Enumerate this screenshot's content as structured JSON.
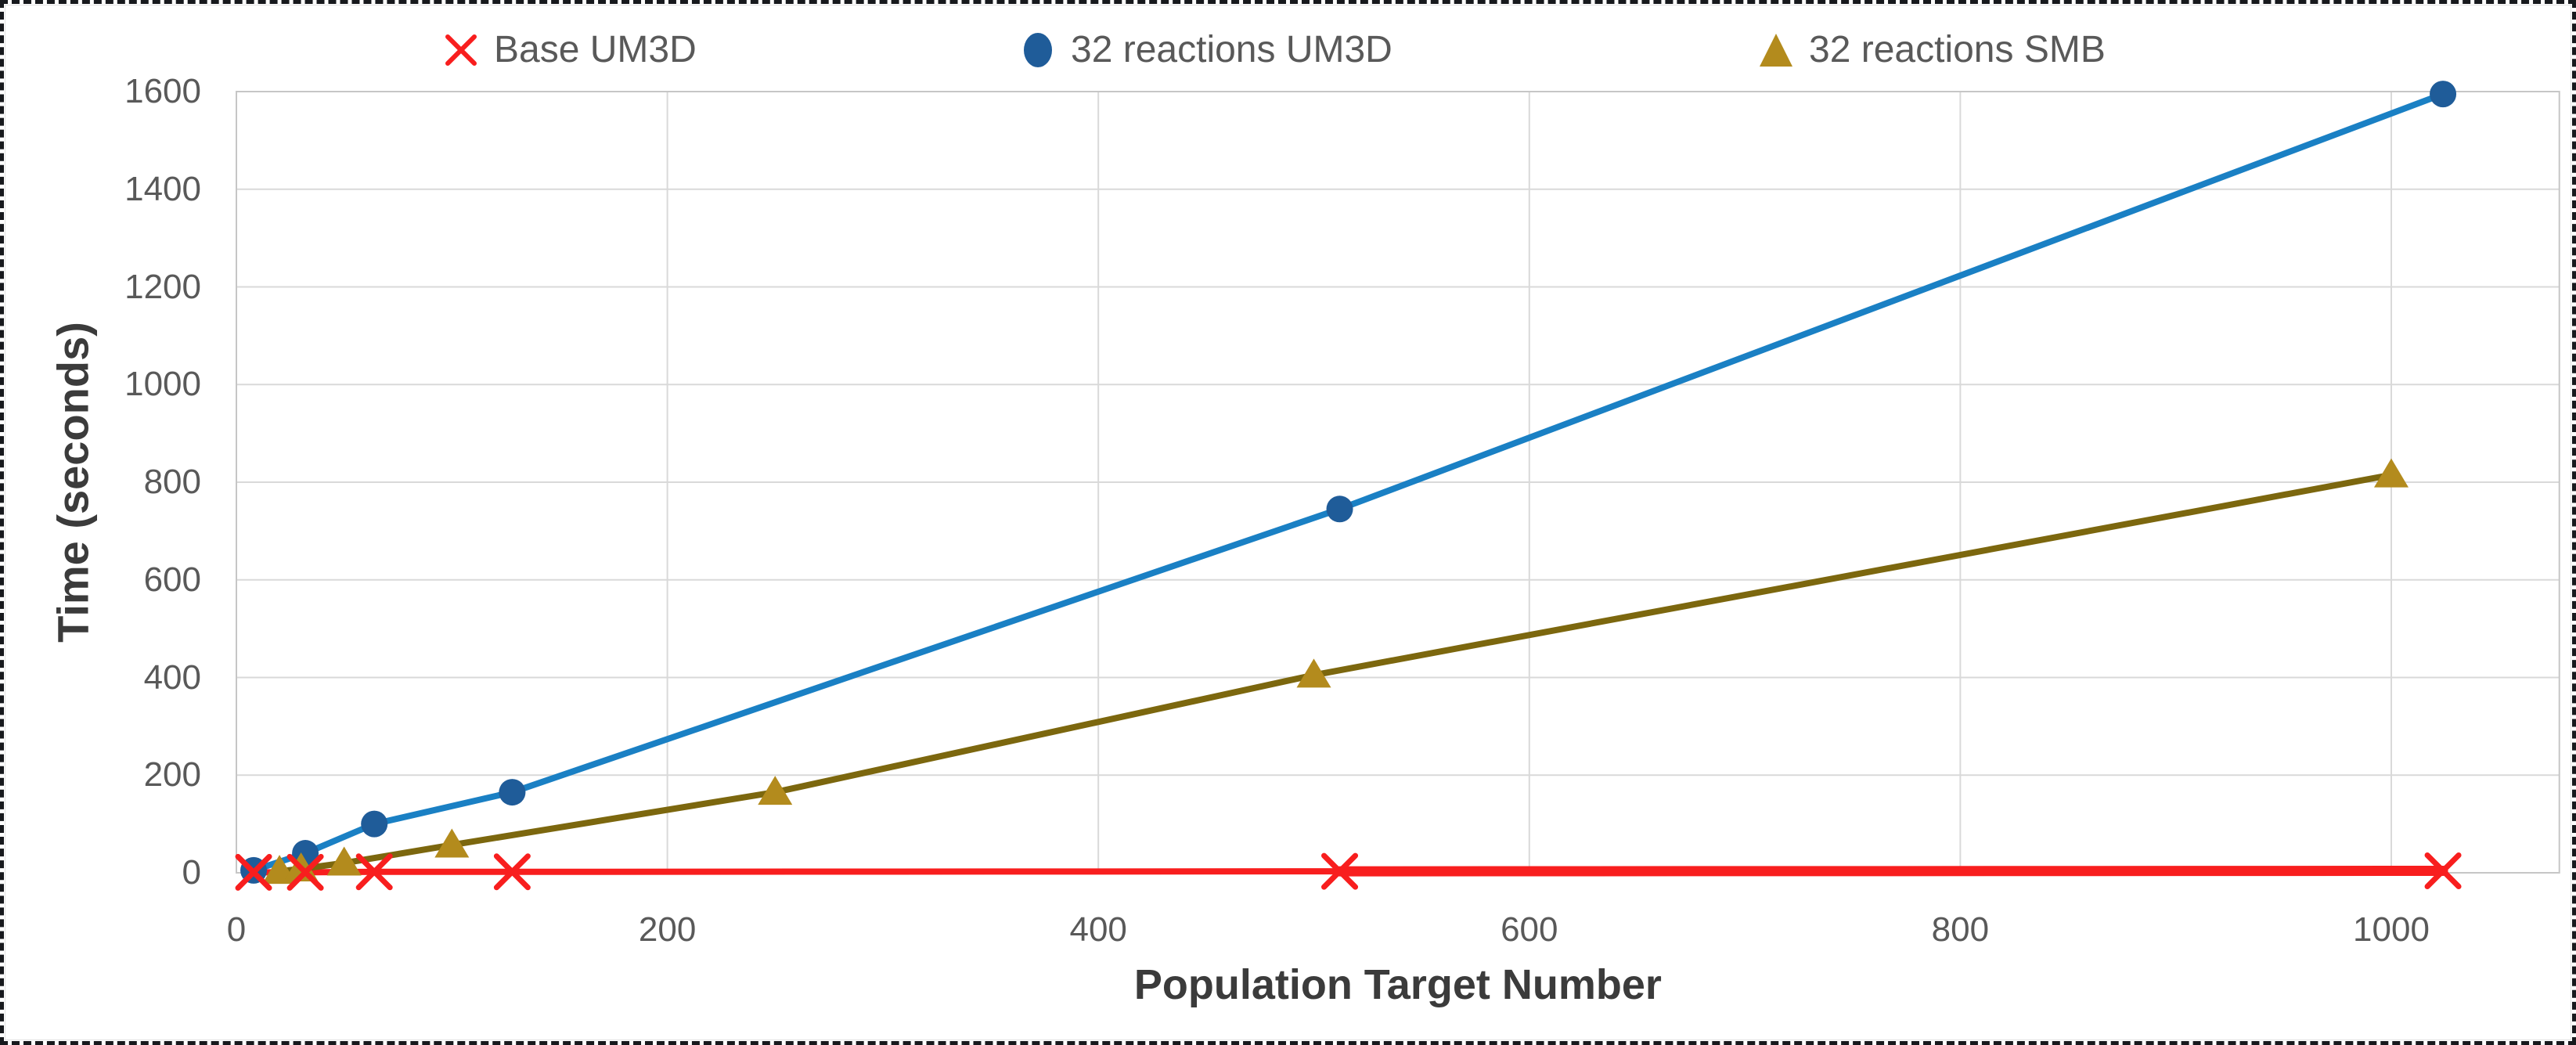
{
  "figure": {
    "background": "#ffffff",
    "frame_color": "#17191d",
    "plot_border_color": "#c6c6c6",
    "gridline_color": "#d9d9d9",
    "tick_text_color": "#595959",
    "title_text_color": "#3b3b3b"
  },
  "chart_data": {
    "type": "line",
    "title": "",
    "xlabel": "Population Target Number",
    "ylabel": "Time (seconds)",
    "xlim": [
      0,
      1078
    ],
    "ylim": [
      0,
      1600
    ],
    "x_ticks": [
      0,
      200,
      400,
      600,
      800,
      1000
    ],
    "y_ticks": [
      0,
      200,
      400,
      600,
      800,
      1000,
      1200,
      1400,
      1600
    ],
    "grid": true,
    "legend_position": "top",
    "series": [
      {
        "name": "Base UM3D",
        "marker": "x",
        "line_color": "#f81e1e",
        "marker_color": "#f81e1e",
        "line_width": 8,
        "tail": {
          "from_x": 512,
          "line_width": 13
        },
        "x": [
          8,
          32,
          64,
          128,
          512,
          1024
        ],
        "y": [
          1,
          1,
          2,
          2,
          3,
          4
        ]
      },
      {
        "name": "32 reactions UM3D",
        "marker": "circle",
        "line_color": "#1a80c4",
        "marker_color": "#1f5c99",
        "line_width": 8,
        "x": [
          8,
          32,
          64,
          128,
          512,
          1024
        ],
        "y": [
          5,
          40,
          100,
          165,
          745,
          1595
        ]
      },
      {
        "name": "32 reactions SMB",
        "marker": "triangle",
        "line_color": "#7c670e",
        "marker_color": "#b38b1d",
        "line_width": 8,
        "x": [
          20,
          30,
          50,
          100,
          250,
          500,
          1000
        ],
        "y": [
          3,
          8,
          20,
          57,
          165,
          405,
          815
        ]
      }
    ]
  }
}
